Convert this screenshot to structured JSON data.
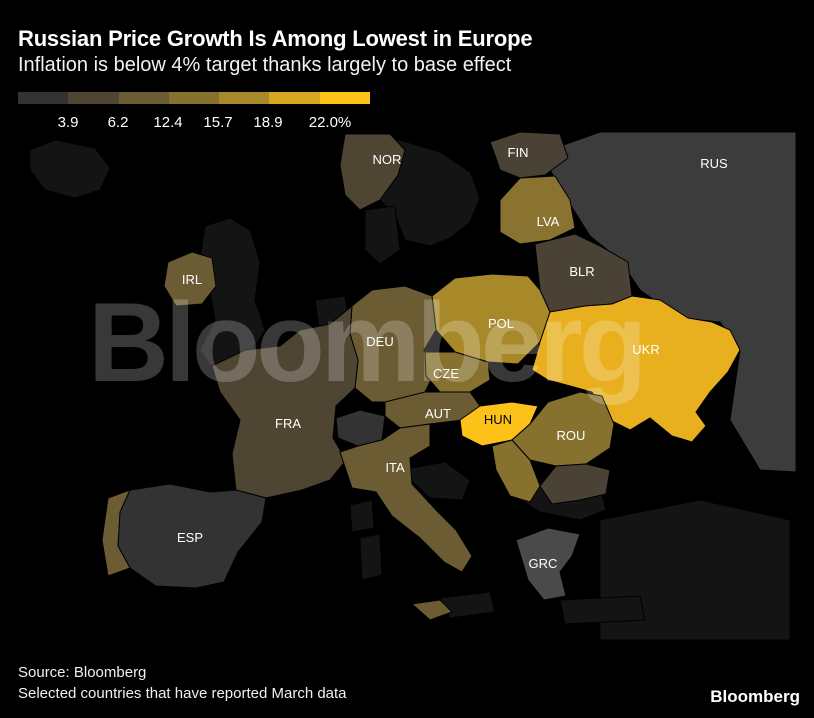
{
  "title": "Russian Price Growth Is Among Lowest in Europe",
  "subtitle": "Inflation is below 4% target thanks largely to base effect",
  "legend": {
    "ticks": [
      "3.9",
      "6.2",
      "12.4",
      "15.7",
      "18.9",
      "22.0%"
    ],
    "colors": [
      "#333333",
      "#4e4533",
      "#6b5c34",
      "#86712f",
      "#a8892a",
      "#d6a622",
      "#fcc21a"
    ]
  },
  "countries": {
    "RUS": {
      "label": "RUS",
      "color": "#3c3c3c"
    },
    "FIN": {
      "label": "FIN",
      "color": "#4a4335"
    },
    "NOR": {
      "label": "NOR",
      "color": "#4e4533"
    },
    "LVA": {
      "label": "LVA",
      "color": "#8a7330"
    },
    "BLR": {
      "label": "BLR",
      "color": "#4a4335"
    },
    "IRL": {
      "label": "IRL",
      "color": "#6b5c34"
    },
    "POL": {
      "label": "POL",
      "color": "#a8892a"
    },
    "DEU": {
      "label": "DEU",
      "color": "#6b5c34"
    },
    "UKR": {
      "label": "UKR",
      "color": "#e8b01e"
    },
    "CZE": {
      "label": "CZE",
      "color": "#86712f"
    },
    "FRA": {
      "label": "FRA",
      "color": "#4e4533"
    },
    "AUT": {
      "label": "AUT",
      "color": "#6b5c34"
    },
    "HUN": {
      "label": "HUN",
      "color": "#fcc21a"
    },
    "ROU": {
      "label": "ROU",
      "color": "#86712f"
    },
    "ITA": {
      "label": "ITA",
      "color": "#6b5c34"
    },
    "ESP": {
      "label": "ESP",
      "color": "#333333"
    },
    "GRC": {
      "label": "GRC",
      "color": "#4a4a4a"
    }
  },
  "watermark": "Bloomberg",
  "source": "Source: Bloomberg",
  "note": "Selected countries that have reported March data",
  "brand": "Bloomberg"
}
